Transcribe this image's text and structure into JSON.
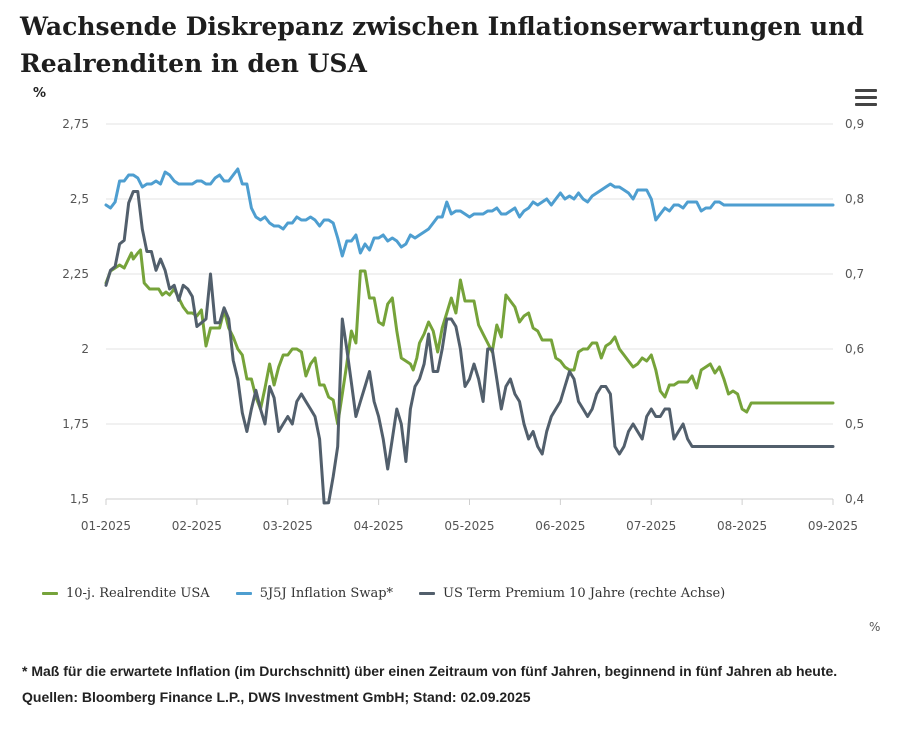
{
  "title": "Wachsende Diskrepanz zwischen Inflationserwartungen und Realrenditen in den USA",
  "left_unit": "%",
  "right_unit": "%",
  "menu_icon": "hamburger-menu-icon",
  "footnote": {
    "line1": "* Maß für die erwartete Inflation (im Durchschnitt) über einen Zeitraum von fünf Jahren, beginnend in fünf Jahren ab heute.",
    "line2": "Quellen: Bloomberg Finance L.P., DWS Investment GmbH; Stand: 02.09.2025"
  },
  "chart_data": {
    "type": "line",
    "title": "Wachsende Diskrepanz zwischen Inflationserwartungen und Realrenditen in den USA",
    "x_ticks": [
      "01-2025",
      "02-2025",
      "03-2025",
      "04-2025",
      "05-2025",
      "06-2025",
      "07-2025",
      "08-2025",
      "09-2025"
    ],
    "x_range": [
      0,
      8
    ],
    "y_left": {
      "range": [
        1.5,
        2.75
      ],
      "ticks": [
        1.5,
        1.75,
        2,
        2.25,
        2.5,
        2.75
      ],
      "tick_labels": [
        "1,5",
        "1,75",
        "2",
        "2,25",
        "2,5",
        "2,75"
      ],
      "unit": "%"
    },
    "y_right": {
      "range": [
        0.4,
        0.9
      ],
      "ticks": [
        0.4,
        0.5,
        0.6,
        0.7,
        0.8,
        0.9
      ],
      "tick_labels": [
        "0,4",
        "0,5",
        "0,6",
        "0,7",
        "0,8",
        "0,9"
      ],
      "unit": "%"
    },
    "grid": true,
    "legend_position": "bottom-left",
    "series": [
      {
        "name": "10-j. Realrendite USA",
        "axis": "left",
        "color": "#76a33a",
        "x": [
          0,
          0.05,
          0.1,
          0.15,
          0.2,
          0.28,
          0.3,
          0.35,
          0.38,
          0.42,
          0.48,
          0.5,
          0.58,
          0.62,
          0.66,
          0.7,
          0.75,
          0.8,
          0.85,
          0.9,
          0.95,
          1.0,
          1.05,
          1.1,
          1.15,
          1.2,
          1.25,
          1.3,
          1.35,
          1.4,
          1.45,
          1.5,
          1.55,
          1.6,
          1.65,
          1.7,
          1.75,
          1.8,
          1.85,
          1.9,
          1.95,
          2.0,
          2.05,
          2.1,
          2.15,
          2.2,
          2.25,
          2.3,
          2.35,
          2.4,
          2.45,
          2.5,
          2.55,
          2.6,
          2.65,
          2.7,
          2.75,
          2.8,
          2.85,
          2.9,
          2.95,
          3.0,
          3.05,
          3.1,
          3.15,
          3.2,
          3.25,
          3.3,
          3.35,
          3.38,
          3.42,
          3.45,
          3.5,
          3.55,
          3.6,
          3.65,
          3.7,
          3.75,
          3.8,
          3.85,
          3.9,
          3.95,
          4.0,
          4.05,
          4.1,
          4.15,
          4.2,
          4.25,
          4.3,
          4.35,
          4.4,
          4.45,
          4.5,
          4.55,
          4.6,
          4.65,
          4.7,
          4.75,
          4.8,
          4.85,
          4.9,
          4.95,
          5.0,
          5.05,
          5.1,
          5.15,
          5.2,
          5.25,
          5.3,
          5.35,
          5.4,
          5.45,
          5.5,
          5.55,
          5.6,
          5.65,
          5.7,
          5.75,
          5.8,
          5.85,
          5.9,
          5.95,
          6.0,
          6.05,
          6.1,
          6.15,
          6.2,
          6.25,
          6.3,
          6.35,
          6.4,
          6.45,
          6.5,
          6.55,
          6.6,
          6.65,
          6.7,
          6.75,
          6.8,
          6.85,
          6.9,
          6.95,
          7.0,
          7.05,
          7.1,
          7.15,
          7.2,
          7.25,
          7.3,
          7.35,
          7.4,
          7.45,
          7.5,
          7.55,
          7.6,
          7.65,
          7.7,
          7.75,
          7.8,
          7.85,
          7.9,
          7.95,
          8.0
        ],
        "values": [
          2.22,
          2.26,
          2.27,
          2.28,
          2.27,
          2.32,
          2.3,
          2.32,
          2.33,
          2.22,
          2.2,
          2.2,
          2.2,
          2.18,
          2.19,
          2.18,
          2.2,
          2.17,
          2.14,
          2.12,
          2.12,
          2.11,
          2.13,
          2.01,
          2.07,
          2.07,
          2.07,
          2.13,
          2.07,
          2.04,
          2.0,
          1.98,
          1.9,
          1.9,
          1.84,
          1.8,
          1.87,
          1.95,
          1.88,
          1.94,
          1.98,
          1.98,
          2.0,
          2.0,
          1.99,
          1.91,
          1.95,
          1.97,
          1.88,
          1.88,
          1.84,
          1.83,
          1.75,
          1.85,
          1.95,
          2.06,
          2.02,
          2.26,
          2.26,
          2.17,
          2.17,
          2.09,
          2.08,
          2.15,
          2.17,
          2.06,
          1.97,
          1.96,
          1.95,
          1.93,
          1.97,
          2.02,
          2.05,
          2.09,
          2.06,
          1.99,
          2.07,
          2.12,
          2.17,
          2.12,
          2.23,
          2.16,
          2.16,
          2.16,
          2.08,
          2.05,
          2.02,
          1.99,
          2.08,
          2.04,
          2.18,
          2.16,
          2.14,
          2.09,
          2.11,
          2.12,
          2.07,
          2.06,
          2.03,
          2.03,
          2.03,
          1.97,
          1.96,
          1.94,
          1.93,
          1.93,
          1.99,
          2.0,
          2.0,
          2.02,
          2.02,
          1.97,
          2.01,
          2.02,
          2.04,
          2.0,
          1.98,
          1.96,
          1.94,
          1.95,
          1.97,
          1.96,
          1.98,
          1.93,
          1.86,
          1.84,
          1.88,
          1.88,
          1.89,
          1.89,
          1.89,
          1.91,
          1.87,
          1.93,
          1.94,
          1.95,
          1.92,
          1.94,
          1.9,
          1.85,
          1.86,
          1.85,
          1.8,
          1.79,
          1.82,
          1.82,
          1.82,
          1.82,
          1.82,
          1.82,
          1.82,
          1.82,
          1.82,
          1.82,
          1.82,
          1.82,
          1.82,
          1.82,
          1.82,
          1.82,
          1.82,
          1.82,
          1.82
        ]
      },
      {
        "name": "5J5J Inflation Swap*",
        "axis": "left",
        "color": "#4e9ed0",
        "x": [
          0,
          0.05,
          0.1,
          0.15,
          0.2,
          0.25,
          0.3,
          0.35,
          0.4,
          0.45,
          0.5,
          0.55,
          0.6,
          0.65,
          0.7,
          0.75,
          0.8,
          0.85,
          0.9,
          0.95,
          1.0,
          1.05,
          1.1,
          1.15,
          1.2,
          1.25,
          1.3,
          1.35,
          1.4,
          1.45,
          1.5,
          1.55,
          1.6,
          1.65,
          1.7,
          1.75,
          1.8,
          1.85,
          1.9,
          1.95,
          2.0,
          2.05,
          2.1,
          2.15,
          2.2,
          2.25,
          2.3,
          2.35,
          2.4,
          2.45,
          2.5,
          2.55,
          2.6,
          2.65,
          2.7,
          2.75,
          2.8,
          2.85,
          2.9,
          2.95,
          3.0,
          3.05,
          3.1,
          3.15,
          3.2,
          3.25,
          3.3,
          3.35,
          3.4,
          3.45,
          3.5,
          3.55,
          3.6,
          3.65,
          3.7,
          3.75,
          3.8,
          3.85,
          3.9,
          3.95,
          4.0,
          4.05,
          4.1,
          4.15,
          4.2,
          4.25,
          4.3,
          4.35,
          4.4,
          4.45,
          4.5,
          4.55,
          4.6,
          4.65,
          4.7,
          4.75,
          4.8,
          4.85,
          4.9,
          4.95,
          5.0,
          5.05,
          5.1,
          5.15,
          5.2,
          5.25,
          5.3,
          5.35,
          5.4,
          5.45,
          5.5,
          5.55,
          5.6,
          5.65,
          5.7,
          5.75,
          5.8,
          5.85,
          5.9,
          5.95,
          6.0,
          6.05,
          6.1,
          6.15,
          6.2,
          6.25,
          6.3,
          6.35,
          6.4,
          6.45,
          6.5,
          6.55,
          6.6,
          6.65,
          6.7,
          6.75,
          6.8,
          6.85,
          6.9,
          6.95,
          7.0,
          7.05,
          7.1,
          7.15,
          7.2,
          7.25,
          7.3,
          7.35,
          7.4,
          7.45,
          7.5,
          7.55,
          7.6,
          7.65,
          7.7,
          7.75,
          7.8,
          7.85,
          7.9,
          7.95,
          8.0
        ],
        "values": [
          2.48,
          2.47,
          2.49,
          2.56,
          2.56,
          2.58,
          2.58,
          2.57,
          2.54,
          2.55,
          2.55,
          2.56,
          2.55,
          2.59,
          2.58,
          2.56,
          2.55,
          2.55,
          2.55,
          2.55,
          2.56,
          2.56,
          2.55,
          2.55,
          2.57,
          2.58,
          2.56,
          2.56,
          2.58,
          2.6,
          2.55,
          2.55,
          2.47,
          2.44,
          2.43,
          2.44,
          2.42,
          2.41,
          2.41,
          2.4,
          2.42,
          2.42,
          2.44,
          2.43,
          2.43,
          2.44,
          2.43,
          2.41,
          2.43,
          2.43,
          2.42,
          2.37,
          2.31,
          2.36,
          2.36,
          2.38,
          2.32,
          2.35,
          2.33,
          2.37,
          2.37,
          2.38,
          2.36,
          2.37,
          2.36,
          2.34,
          2.35,
          2.38,
          2.37,
          2.38,
          2.39,
          2.4,
          2.42,
          2.44,
          2.44,
          2.49,
          2.45,
          2.46,
          2.46,
          2.45,
          2.44,
          2.45,
          2.45,
          2.45,
          2.46,
          2.46,
          2.47,
          2.45,
          2.45,
          2.46,
          2.47,
          2.44,
          2.46,
          2.47,
          2.49,
          2.48,
          2.49,
          2.5,
          2.48,
          2.5,
          2.52,
          2.5,
          2.51,
          2.5,
          2.52,
          2.5,
          2.49,
          2.51,
          2.52,
          2.53,
          2.54,
          2.55,
          2.54,
          2.54,
          2.53,
          2.52,
          2.5,
          2.53,
          2.53,
          2.53,
          2.5,
          2.43,
          2.45,
          2.47,
          2.46,
          2.48,
          2.48,
          2.47,
          2.49,
          2.49,
          2.49,
          2.46,
          2.47,
          2.47,
          2.49,
          2.49,
          2.48,
          2.48,
          2.48,
          2.48,
          2.48,
          2.48,
          2.48,
          2.48,
          2.48,
          2.48,
          2.48,
          2.48,
          2.48,
          2.48,
          2.48,
          2.48,
          2.48,
          2.48,
          2.48,
          2.48,
          2.48,
          2.48,
          2.48,
          2.48,
          2.48
        ]
      },
      {
        "name": "US Term Premium 10 Jahre (rechte Achse)",
        "axis": "right",
        "color": "#525f6c",
        "x": [
          0,
          0.05,
          0.1,
          0.15,
          0.2,
          0.25,
          0.3,
          0.35,
          0.4,
          0.45,
          0.5,
          0.55,
          0.6,
          0.65,
          0.7,
          0.75,
          0.8,
          0.85,
          0.9,
          0.95,
          1.0,
          1.05,
          1.1,
          1.15,
          1.2,
          1.25,
          1.3,
          1.35,
          1.4,
          1.45,
          1.5,
          1.55,
          1.6,
          1.65,
          1.7,
          1.75,
          1.8,
          1.85,
          1.9,
          1.95,
          2.0,
          2.05,
          2.1,
          2.15,
          2.2,
          2.25,
          2.3,
          2.35,
          2.4,
          2.45,
          2.5,
          2.55,
          2.6,
          2.65,
          2.7,
          2.75,
          2.8,
          2.85,
          2.9,
          2.95,
          3.0,
          3.05,
          3.1,
          3.15,
          3.2,
          3.25,
          3.3,
          3.35,
          3.4,
          3.45,
          3.5,
          3.55,
          3.6,
          3.65,
          3.7,
          3.75,
          3.8,
          3.85,
          3.9,
          3.95,
          4.0,
          4.05,
          4.1,
          4.15,
          4.2,
          4.25,
          4.3,
          4.35,
          4.4,
          4.45,
          4.5,
          4.55,
          4.6,
          4.65,
          4.7,
          4.75,
          4.8,
          4.85,
          4.9,
          4.95,
          5.0,
          5.05,
          5.1,
          5.15,
          5.2,
          5.25,
          5.3,
          5.35,
          5.4,
          5.45,
          5.5,
          5.55,
          5.6,
          5.65,
          5.7,
          5.75,
          5.8,
          5.85,
          5.9,
          5.95,
          6.0,
          6.05,
          6.1,
          6.15,
          6.2,
          6.25,
          6.3,
          6.35,
          6.4,
          6.45,
          6.5,
          6.55,
          6.6,
          6.65,
          6.7,
          6.75,
          6.8,
          6.85,
          6.9,
          6.95,
          7.0,
          7.05,
          7.1,
          7.15,
          7.2,
          7.25,
          7.3,
          7.35,
          7.4,
          7.45,
          7.5,
          7.55,
          7.6,
          7.65,
          7.7,
          7.75,
          7.8,
          7.85,
          7.9,
          7.95,
          8.0
        ],
        "values": [
          0.685,
          0.705,
          0.71,
          0.74,
          0.745,
          0.795,
          0.81,
          0.81,
          0.76,
          0.73,
          0.73,
          0.705,
          0.72,
          0.705,
          0.68,
          0.685,
          0.665,
          0.685,
          0.68,
          0.67,
          0.63,
          0.635,
          0.64,
          0.7,
          0.635,
          0.635,
          0.655,
          0.64,
          0.585,
          0.56,
          0.515,
          0.49,
          0.52,
          0.545,
          0.52,
          0.5,
          0.55,
          0.535,
          0.49,
          0.5,
          0.51,
          0.5,
          0.53,
          0.54,
          0.53,
          0.52,
          0.51,
          0.48,
          0.37,
          0.395,
          0.43,
          0.47,
          0.64,
          0.6,
          0.555,
          0.51,
          0.53,
          0.55,
          0.57,
          0.53,
          0.51,
          0.48,
          0.44,
          0.48,
          0.52,
          0.5,
          0.45,
          0.52,
          0.55,
          0.56,
          0.58,
          0.62,
          0.57,
          0.57,
          0.6,
          0.64,
          0.64,
          0.63,
          0.6,
          0.55,
          0.56,
          0.58,
          0.56,
          0.53,
          0.6,
          0.6,
          0.56,
          0.52,
          0.55,
          0.56,
          0.54,
          0.53,
          0.5,
          0.48,
          0.49,
          0.47,
          0.46,
          0.49,
          0.51,
          0.52,
          0.53,
          0.55,
          0.57,
          0.56,
          0.53,
          0.52,
          0.51,
          0.52,
          0.54,
          0.55,
          0.55,
          0.54,
          0.47,
          0.46,
          0.47,
          0.49,
          0.5,
          0.49,
          0.48,
          0.51,
          0.52,
          0.51,
          0.51,
          0.52,
          0.52,
          0.48,
          0.49,
          0.5,
          0.48,
          0.47,
          0.47,
          0.47,
          0.47,
          0.47,
          0.47,
          0.47,
          0.47,
          0.47,
          0.47,
          0.47,
          0.47,
          0.47,
          0.47,
          0.47,
          0.47,
          0.47,
          0.47,
          0.47,
          0.47,
          0.47,
          0.47,
          0.47,
          0.47,
          0.47,
          0.47,
          0.47,
          0.47,
          0.47,
          0.47,
          0.47,
          0.47
        ]
      }
    ]
  }
}
